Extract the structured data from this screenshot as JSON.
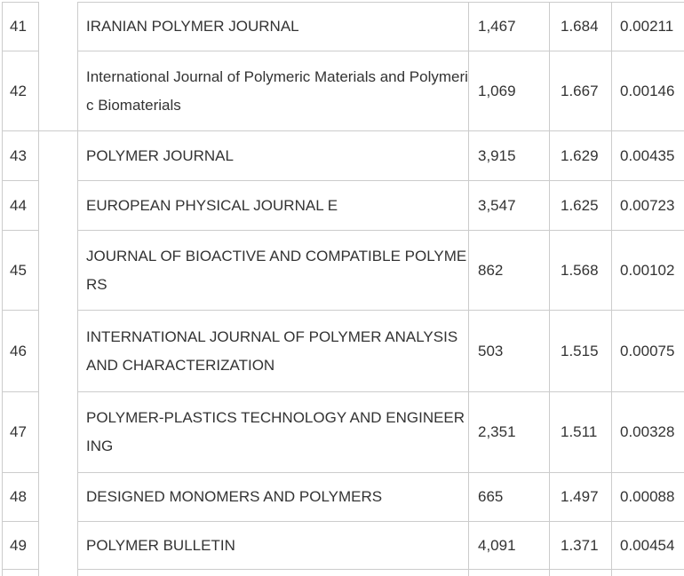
{
  "colors": {
    "border": "#cccccc",
    "text": "#333333",
    "background": "#ffffff"
  },
  "table": {
    "rows": [
      {
        "rank": "41",
        "name": "IRANIAN POLYMER JOURNAL",
        "name_lines": [
          "IRANIAN POLYMER JOURNAL"
        ],
        "cites": "1,467",
        "factor": "1.684",
        "score": "0.00211"
      },
      {
        "rank": "42",
        "name": "International Journal of Polymeric Materials and Polymeric Biomaterials",
        "name_lines": [
          "International Journal of Polymeric Materials and Polymeri",
          "c Biomaterials"
        ],
        "cites": "1,069",
        "factor": "1.667",
        "score": "0.00146"
      },
      {
        "rank": "43",
        "name": "POLYMER JOURNAL",
        "name_lines": [
          "POLYMER JOURNAL"
        ],
        "cites": "3,915",
        "factor": "1.629",
        "score": "0.00435"
      },
      {
        "rank": "44",
        "name": "EUROPEAN PHYSICAL JOURNAL E",
        "name_lines": [
          "EUROPEAN PHYSICAL JOURNAL E"
        ],
        "cites": "3,547",
        "factor": "1.625",
        "score": "0.00723"
      },
      {
        "rank": "45",
        "name": "JOURNAL OF BIOACTIVE AND COMPATIBLE POLYMERS",
        "name_lines": [
          "JOURNAL OF BIOACTIVE AND COMPATIBLE POLYME",
          "RS"
        ],
        "cites": "862",
        "factor": "1.568",
        "score": "0.00102"
      },
      {
        "rank": "46",
        "name": "INTERNATIONAL JOURNAL OF POLYMER ANALYSIS AND CHARACTERIZATION",
        "name_lines": [
          "INTERNATIONAL JOURNAL OF POLYMER ANALYSIS",
          "AND CHARACTERIZATION"
        ],
        "cites": "503",
        "factor": "1.515",
        "score": "0.00075"
      },
      {
        "rank": "47",
        "name": "POLYMER-PLASTICS TECHNOLOGY AND ENGINEERING",
        "name_lines": [
          "POLYMER-PLASTICS TECHNOLOGY AND ENGINEER",
          "ING"
        ],
        "cites": "2,351",
        "factor": "1.511",
        "score": "0.00328"
      },
      {
        "rank": "48",
        "name": "DESIGNED MONOMERS AND POLYMERS",
        "name_lines": [
          "DESIGNED MONOMERS AND POLYMERS"
        ],
        "cites": "665",
        "factor": "1.497",
        "score": "0.00088"
      },
      {
        "rank": "49",
        "name": "POLYMER BULLETIN",
        "name_lines": [
          "POLYMER BULLETIN"
        ],
        "cites": "4,091",
        "factor": "1.371",
        "score": "0.00454"
      }
    ]
  }
}
